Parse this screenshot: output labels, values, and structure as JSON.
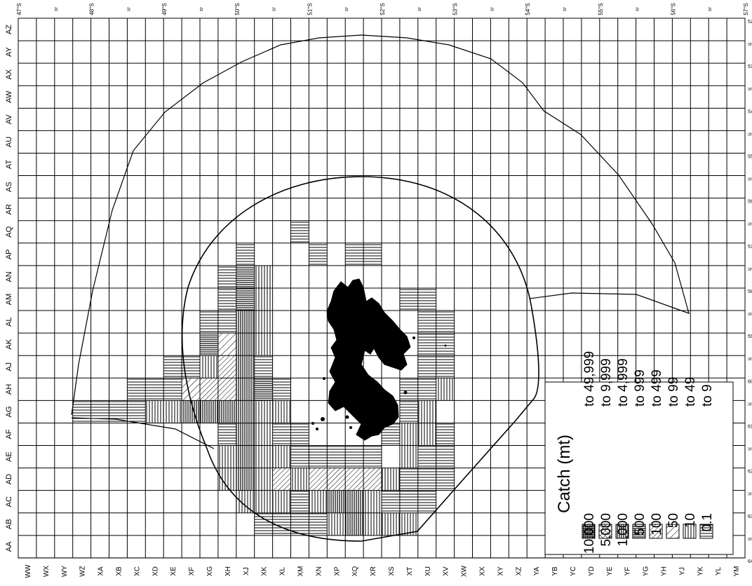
{
  "map": {
    "top_axis_labels": [
      "47°S",
      "30'",
      "48°S",
      "30'",
      "49°S",
      "30'",
      "50°S",
      "30'",
      "51°S",
      "30'",
      "52°S",
      "30'",
      "53°S",
      "30'",
      "54°S",
      "30'",
      "55°S",
      "30'",
      "56°S",
      "30'",
      "57°S"
    ],
    "right_axis_labels": [
      "52°W",
      "30'",
      "53°W",
      "30'",
      "54°W",
      "30'",
      "55°W",
      "30'",
      "56°W",
      "30'",
      "57°W",
      "30'",
      "58°W",
      "30'",
      "59°W",
      "30'",
      "60°W",
      "30'",
      "61°W",
      "30'",
      "62°W",
      "30'",
      "63°W",
      "30'",
      "64°W"
    ],
    "left_axis_labels": [
      "AZ",
      "AY",
      "AX",
      "AW",
      "AV",
      "AU",
      "AT",
      "AS",
      "AR",
      "AQ",
      "AP",
      "AN",
      "AM",
      "AL",
      "AK",
      "AJ",
      "AH",
      "AG",
      "AF",
      "AE",
      "AD",
      "AC",
      "AB",
      "AA"
    ],
    "bottom_axis_labels": [
      "WW",
      "WX",
      "WY",
      "WZ",
      "XA",
      "XB",
      "XC",
      "XD",
      "XE",
      "XF",
      "XG",
      "XH",
      "XJ",
      "XK",
      "XL",
      "XM",
      "XN",
      "XP",
      "XQ",
      "XR",
      "XS",
      "XT",
      "XU",
      "XV",
      "XW",
      "XX",
      "XY",
      "XZ",
      "YA",
      "YB",
      "YC",
      "YD",
      "YE",
      "YF",
      "YG",
      "YH",
      "YJ",
      "YK",
      "YL",
      "YM"
    ]
  },
  "legend": {
    "title": "Catch (mt)",
    "rows": [
      {
        "from": "10,000",
        "to": "to 49,999",
        "pattern": "grid"
      },
      {
        "from": "5,000",
        "to": "to 9,999",
        "pattern": "crosshatch"
      },
      {
        "from": "1,000",
        "to": "to 4,999",
        "pattern": "vertical-dense"
      },
      {
        "from": "500",
        "to": "to 999",
        "pattern": "horizontal-dense"
      },
      {
        "from": "100",
        "to": "to 499",
        "pattern": "diagonal"
      },
      {
        "from": "50",
        "to": "to 99",
        "pattern": "diagonal-sparse"
      },
      {
        "from": "10",
        "to": "to 49",
        "pattern": "vertical"
      },
      {
        "from": "0.1",
        "to": "to 9",
        "pattern": "horizontal"
      }
    ]
  }
}
